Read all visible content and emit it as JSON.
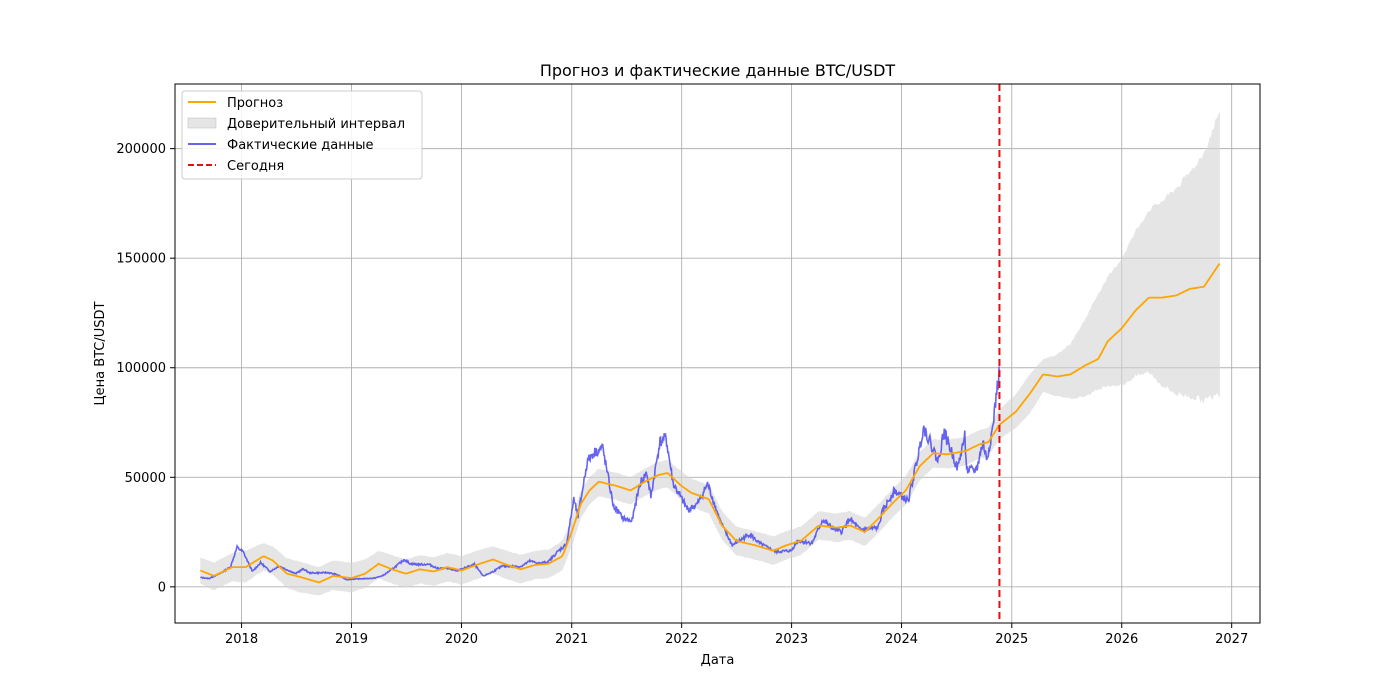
{
  "chart_data": {
    "type": "line",
    "title": "Прогноз и фактические данные BTC/USDT",
    "xlabel": "Дата",
    "ylabel": "Цена BTC/USDT",
    "xlim": [
      "2017-05-25",
      "2027-04-05"
    ],
    "ylim": [
      -16500,
      229500
    ],
    "x_ticks": [
      "2018",
      "2019",
      "2020",
      "2021",
      "2022",
      "2023",
      "2024",
      "2025",
      "2026",
      "2027"
    ],
    "y_ticks": [
      0,
      50000,
      100000,
      150000,
      200000
    ],
    "y_tick_labels": [
      "0",
      "50000",
      "100000",
      "150000",
      "200000"
    ],
    "grid": true,
    "legend_position": "top-left",
    "legend": [
      "Прогноз",
      "Доверительный интервал",
      "Фактические данные",
      "Сегодня"
    ],
    "colors": {
      "forecast": "#ffa500",
      "interval": "#d3d3d3",
      "actual": "#4a4aee",
      "today": "#e01010",
      "grid": "#b0b0b0"
    },
    "today": "2024-11-21",
    "forecast": {
      "name": "Прогноз",
      "points": [
        [
          "2017-08-17",
          7500
        ],
        [
          "2017-10-01",
          5000
        ],
        [
          "2017-12-01",
          9000
        ],
        [
          "2018-01-15",
          9000
        ],
        [
          "2018-03-15",
          14000
        ],
        [
          "2018-04-15",
          12000
        ],
        [
          "2018-06-01",
          6000
        ],
        [
          "2018-07-15",
          4500
        ],
        [
          "2018-09-15",
          2000
        ],
        [
          "2018-11-01",
          5000
        ],
        [
          "2019-01-01",
          4000
        ],
        [
          "2019-02-15",
          6000
        ],
        [
          "2019-04-01",
          10500
        ],
        [
          "2019-05-15",
          8000
        ],
        [
          "2019-07-01",
          6000
        ],
        [
          "2019-08-15",
          8000
        ],
        [
          "2019-10-01",
          7000
        ],
        [
          "2019-11-15",
          9000
        ],
        [
          "2020-01-01",
          7500
        ],
        [
          "2020-03-01",
          10500
        ],
        [
          "2020-04-15",
          12500
        ],
        [
          "2020-06-01",
          10000
        ],
        [
          "2020-07-15",
          8000
        ],
        [
          "2020-09-01",
          10000
        ],
        [
          "2020-10-15",
          10500
        ],
        [
          "2020-12-01",
          14000
        ],
        [
          "2021-01-01",
          25000
        ],
        [
          "2021-02-01",
          38000
        ],
        [
          "2021-03-01",
          44000
        ],
        [
          "2021-04-01",
          48000
        ],
        [
          "2021-06-01",
          46000
        ],
        [
          "2021-07-15",
          44000
        ],
        [
          "2021-09-01",
          48000
        ],
        [
          "2021-10-15",
          51000
        ],
        [
          "2021-11-15",
          52000
        ],
        [
          "2022-01-01",
          46000
        ],
        [
          "2022-02-01",
          43000
        ],
        [
          "2022-04-01",
          40000
        ],
        [
          "2022-05-15",
          28000
        ],
        [
          "2022-07-01",
          21000
        ],
        [
          "2022-09-01",
          19000
        ],
        [
          "2022-11-01",
          16500
        ],
        [
          "2022-12-15",
          19000
        ],
        [
          "2023-02-01",
          21000
        ],
        [
          "2023-04-01",
          28000
        ],
        [
          "2023-06-01",
          27000
        ],
        [
          "2023-07-15",
          28000
        ],
        [
          "2023-09-01",
          25000
        ],
        [
          "2023-10-15",
          31000
        ],
        [
          "2023-12-01",
          38000
        ],
        [
          "2024-01-15",
          44000
        ],
        [
          "2024-03-01",
          55000
        ],
        [
          "2024-04-15",
          61000
        ],
        [
          "2024-06-01",
          60500
        ],
        [
          "2024-08-01",
          62000
        ],
        [
          "2024-09-15",
          65000
        ],
        [
          "2024-10-15",
          66000
        ],
        [
          "2024-11-21",
          74000
        ],
        [
          "2025-01-15",
          80000
        ],
        [
          "2025-03-01",
          88000
        ],
        [
          "2025-04-15",
          97000
        ],
        [
          "2025-06-01",
          96000
        ],
        [
          "2025-07-15",
          97000
        ],
        [
          "2025-09-01",
          101000
        ],
        [
          "2025-10-15",
          104000
        ],
        [
          "2025-11-15",
          112000
        ],
        [
          "2026-01-01",
          118000
        ],
        [
          "2026-02-15",
          126000
        ],
        [
          "2026-04-01",
          132000
        ],
        [
          "2026-05-15",
          132000
        ],
        [
          "2026-07-01",
          133000
        ],
        [
          "2026-08-15",
          136000
        ],
        [
          "2026-10-01",
          137000
        ],
        [
          "2026-11-24",
          148000
        ]
      ]
    },
    "interval": {
      "name": "Доверительный интервал",
      "upper": [
        [
          "2017-08-17",
          13500
        ],
        [
          "2017-10-01",
          11000
        ],
        [
          "2017-12-01",
          15500
        ],
        [
          "2018-01-15",
          16500
        ],
        [
          "2018-03-15",
          20000
        ],
        [
          "2018-04-15",
          18500
        ],
        [
          "2018-06-01",
          13000
        ],
        [
          "2018-07-15",
          11500
        ],
        [
          "2018-09-15",
          9000
        ],
        [
          "2018-11-01",
          12000
        ],
        [
          "2019-01-01",
          11000
        ],
        [
          "2019-02-15",
          12500
        ],
        [
          "2019-04-01",
          16500
        ],
        [
          "2019-05-15",
          14500
        ],
        [
          "2019-07-01",
          12500
        ],
        [
          "2019-08-15",
          14500
        ],
        [
          "2019-10-01",
          13500
        ],
        [
          "2019-11-15",
          15500
        ],
        [
          "2020-01-01",
          14000
        ],
        [
          "2020-03-01",
          17000
        ],
        [
          "2020-04-15",
          18500
        ],
        [
          "2020-06-01",
          16500
        ],
        [
          "2020-07-15",
          14500
        ],
        [
          "2020-09-01",
          16500
        ],
        [
          "2020-10-15",
          17000
        ],
        [
          "2020-12-01",
          21000
        ],
        [
          "2021-01-01",
          31000
        ],
        [
          "2021-02-01",
          44000
        ],
        [
          "2021-03-01",
          50000
        ],
        [
          "2021-04-01",
          54000
        ],
        [
          "2021-06-01",
          52000
        ],
        [
          "2021-07-15",
          50000
        ],
        [
          "2021-09-01",
          54000
        ],
        [
          "2021-10-15",
          57000
        ],
        [
          "2021-11-15",
          58000
        ],
        [
          "2022-01-01",
          52500
        ],
        [
          "2022-02-01",
          49500
        ],
        [
          "2022-04-01",
          46500
        ],
        [
          "2022-05-15",
          34500
        ],
        [
          "2022-07-01",
          27500
        ],
        [
          "2022-09-01",
          25500
        ],
        [
          "2022-11-01",
          23000
        ],
        [
          "2022-12-15",
          25500
        ],
        [
          "2023-02-01",
          27500
        ],
        [
          "2023-04-01",
          34500
        ],
        [
          "2023-06-01",
          33500
        ],
        [
          "2023-07-15",
          34500
        ],
        [
          "2023-09-01",
          31500
        ],
        [
          "2023-10-15",
          37500
        ],
        [
          "2023-12-01",
          44500
        ],
        [
          "2024-01-15",
          50500
        ],
        [
          "2024-03-01",
          61500
        ],
        [
          "2024-04-15",
          67500
        ],
        [
          "2024-06-01",
          67000
        ],
        [
          "2024-08-01",
          68500
        ],
        [
          "2024-09-15",
          71500
        ],
        [
          "2024-10-15",
          72500
        ],
        [
          "2024-11-21",
          81000
        ],
        [
          "2025-01-15",
          88000
        ],
        [
          "2025-03-01",
          97000
        ],
        [
          "2025-04-15",
          104000
        ],
        [
          "2025-06-01",
          106000
        ],
        [
          "2025-07-15",
          111000
        ],
        [
          "2025-09-01",
          122000
        ],
        [
          "2025-10-15",
          134000
        ],
        [
          "2025-11-15",
          141000
        ],
        [
          "2026-01-01",
          150000
        ],
        [
          "2026-02-15",
          162000
        ],
        [
          "2026-04-01",
          172000
        ],
        [
          "2026-05-15",
          176000
        ],
        [
          "2026-07-01",
          182000
        ],
        [
          "2026-08-15",
          189000
        ],
        [
          "2026-10-01",
          198000
        ],
        [
          "2026-11-24",
          218000
        ]
      ],
      "lower": [
        [
          "2017-08-17",
          1500
        ],
        [
          "2017-10-01",
          -1500
        ],
        [
          "2017-12-01",
          2500
        ],
        [
          "2018-01-15",
          2000
        ],
        [
          "2018-03-15",
          7500
        ],
        [
          "2018-04-15",
          5500
        ],
        [
          "2018-06-01",
          -500
        ],
        [
          "2018-07-15",
          -2500
        ],
        [
          "2018-09-15",
          -4000
        ],
        [
          "2018-11-01",
          -1500
        ],
        [
          "2019-01-01",
          -2500
        ],
        [
          "2019-02-15",
          -500
        ],
        [
          "2019-04-01",
          4000
        ],
        [
          "2019-05-15",
          1500
        ],
        [
          "2019-07-01",
          -500
        ],
        [
          "2019-08-15",
          1500
        ],
        [
          "2019-10-01",
          500
        ],
        [
          "2019-11-15",
          2500
        ],
        [
          "2020-01-01",
          1000
        ],
        [
          "2020-03-01",
          4000
        ],
        [
          "2020-04-15",
          6000
        ],
        [
          "2020-06-01",
          3500
        ],
        [
          "2020-07-15",
          1500
        ],
        [
          "2020-09-01",
          3500
        ],
        [
          "2020-10-15",
          4000
        ],
        [
          "2020-12-01",
          7500
        ],
        [
          "2021-01-01",
          18500
        ],
        [
          "2021-02-01",
          31500
        ],
        [
          "2021-03-01",
          37500
        ],
        [
          "2021-04-01",
          41500
        ],
        [
          "2021-06-01",
          39500
        ],
        [
          "2021-07-15",
          37500
        ],
        [
          "2021-09-01",
          41500
        ],
        [
          "2021-10-15",
          44500
        ],
        [
          "2021-11-15",
          45500
        ],
        [
          "2022-01-01",
          39500
        ],
        [
          "2022-02-01",
          36500
        ],
        [
          "2022-04-01",
          33500
        ],
        [
          "2022-05-15",
          21500
        ],
        [
          "2022-07-01",
          14500
        ],
        [
          "2022-09-01",
          12500
        ],
        [
          "2022-11-01",
          10000
        ],
        [
          "2022-12-15",
          12500
        ],
        [
          "2023-02-01",
          14500
        ],
        [
          "2023-04-01",
          21500
        ],
        [
          "2023-06-01",
          20500
        ],
        [
          "2023-07-15",
          21500
        ],
        [
          "2023-09-01",
          18500
        ],
        [
          "2023-10-15",
          24500
        ],
        [
          "2023-12-01",
          31500
        ],
        [
          "2024-01-15",
          37500
        ],
        [
          "2024-03-01",
          48500
        ],
        [
          "2024-04-15",
          54500
        ],
        [
          "2024-06-01",
          54000
        ],
        [
          "2024-08-01",
          55500
        ],
        [
          "2024-09-15",
          58500
        ],
        [
          "2024-10-15",
          59500
        ],
        [
          "2024-11-21",
          67500
        ],
        [
          "2025-01-15",
          72500
        ],
        [
          "2025-03-01",
          79000
        ],
        [
          "2025-04-15",
          89000
        ],
        [
          "2025-06-01",
          87000
        ],
        [
          "2025-07-15",
          86000
        ],
        [
          "2025-09-01",
          87000
        ],
        [
          "2025-10-15",
          90000
        ],
        [
          "2025-11-15",
          92000
        ],
        [
          "2026-01-01",
          92000
        ],
        [
          "2026-02-15",
          96000
        ],
        [
          "2026-04-01",
          98000
        ],
        [
          "2026-05-15",
          92000
        ],
        [
          "2026-07-01",
          88000
        ],
        [
          "2026-08-15",
          87000
        ],
        [
          "2026-10-01",
          85000
        ],
        [
          "2026-11-24",
          88000
        ]
      ]
    },
    "actual": {
      "name": "Фактические данные",
      "points": [
        [
          "2017-08-17",
          4300
        ],
        [
          "2017-09-15",
          3800
        ],
        [
          "2017-10-20",
          6000
        ],
        [
          "2017-11-25",
          9000
        ],
        [
          "2017-12-17",
          18000
        ],
        [
          "2018-01-06",
          16000
        ],
        [
          "2018-02-06",
          7000
        ],
        [
          "2018-03-05",
          11000
        ],
        [
          "2018-04-06",
          7000
        ],
        [
          "2018-05-05",
          9500
        ],
        [
          "2018-06-29",
          6000
        ],
        [
          "2018-07-25",
          8200
        ],
        [
          "2018-08-15",
          6300
        ],
        [
          "2018-10-15",
          6500
        ],
        [
          "2018-11-15",
          5500
        ],
        [
          "2018-12-15",
          3300
        ],
        [
          "2019-01-15",
          3600
        ],
        [
          "2019-03-15",
          3900
        ],
        [
          "2019-04-15",
          5100
        ],
        [
          "2019-05-15",
          8000
        ],
        [
          "2019-06-26",
          12500
        ],
        [
          "2019-07-15",
          10500
        ],
        [
          "2019-08-15",
          10200
        ],
        [
          "2019-09-15",
          10300
        ],
        [
          "2019-10-15",
          8300
        ],
        [
          "2019-11-15",
          8500
        ],
        [
          "2019-12-15",
          7200
        ],
        [
          "2020-02-13",
          10300
        ],
        [
          "2020-03-13",
          4900
        ],
        [
          "2020-04-15",
          7000
        ],
        [
          "2020-05-15",
          9500
        ],
        [
          "2020-07-15",
          9200
        ],
        [
          "2020-08-15",
          11800
        ],
        [
          "2020-09-15",
          10700
        ],
        [
          "2020-10-15",
          11400
        ],
        [
          "2020-11-15",
          16000
        ],
        [
          "2020-12-15",
          19500
        ],
        [
          "2021-01-08",
          40000
        ],
        [
          "2021-01-22",
          32000
        ],
        [
          "2021-02-21",
          57000
        ],
        [
          "2021-03-13",
          61000
        ],
        [
          "2021-04-14",
          63500
        ],
        [
          "2021-05-19",
          37000
        ],
        [
          "2021-06-22",
          31000
        ],
        [
          "2021-07-20",
          30000
        ],
        [
          "2021-08-15",
          47000
        ],
        [
          "2021-09-07",
          52000
        ],
        [
          "2021-09-21",
          41000
        ],
        [
          "2021-10-20",
          66000
        ],
        [
          "2021-11-10",
          68000
        ],
        [
          "2021-12-04",
          47000
        ],
        [
          "2022-01-22",
          35000
        ],
        [
          "2022-02-24",
          38000
        ],
        [
          "2022-03-28",
          47000
        ],
        [
          "2022-05-12",
          29000
        ],
        [
          "2022-06-18",
          19000
        ],
        [
          "2022-08-15",
          24000
        ],
        [
          "2022-09-15",
          20000
        ],
        [
          "2022-11-09",
          16000
        ],
        [
          "2022-12-31",
          16500
        ],
        [
          "2023-01-20",
          21000
        ],
        [
          "2023-03-10",
          20000
        ],
        [
          "2023-04-14",
          30500
        ],
        [
          "2023-05-15",
          27000
        ],
        [
          "2023-06-15",
          25000
        ],
        [
          "2023-07-13",
          31000
        ],
        [
          "2023-08-17",
          26000
        ],
        [
          "2023-10-15",
          27000
        ],
        [
          "2023-10-30",
          34500
        ],
        [
          "2023-12-08",
          44000
        ],
        [
          "2024-01-23",
          39000
        ],
        [
          "2024-02-28",
          62000
        ],
        [
          "2024-03-14",
          73000
        ],
        [
          "2024-04-15",
          63000
        ],
        [
          "2024-05-01",
          57000
        ],
        [
          "2024-05-21",
          71000
        ],
        [
          "2024-07-05",
          54000
        ],
        [
          "2024-07-29",
          69000
        ],
        [
          "2024-08-05",
          53000
        ],
        [
          "2024-09-06",
          53500
        ],
        [
          "2024-09-27",
          66000
        ],
        [
          "2024-10-10",
          58000
        ],
        [
          "2024-10-29",
          72000
        ],
        [
          "2024-11-12",
          89000
        ],
        [
          "2024-11-21",
          98000
        ]
      ]
    }
  }
}
